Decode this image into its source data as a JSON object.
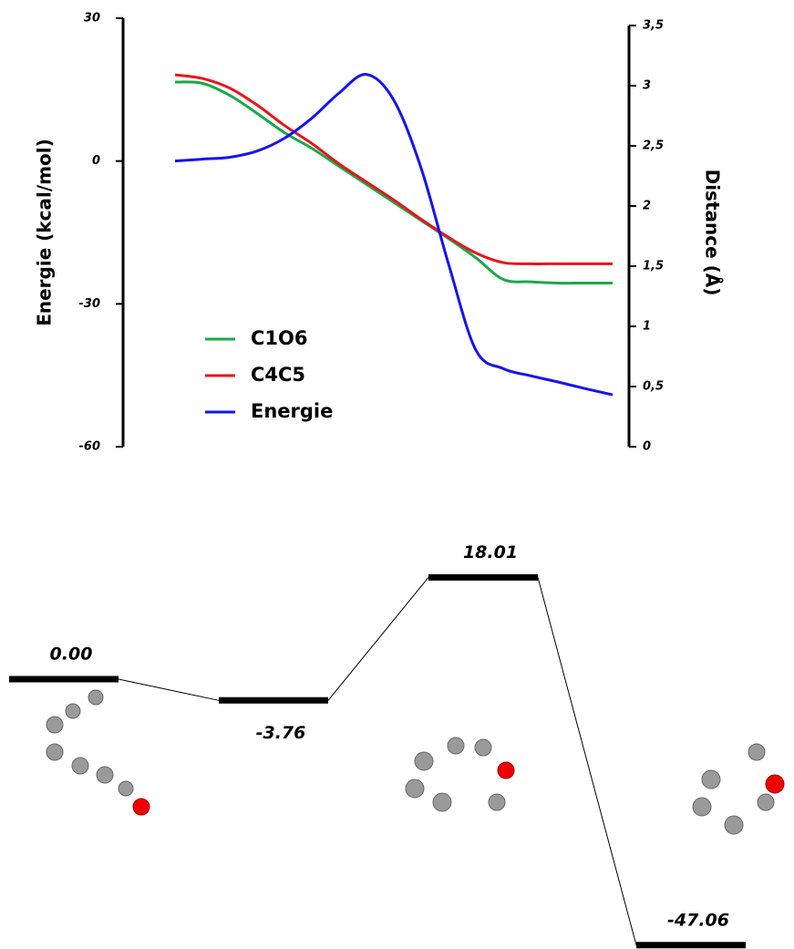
{
  "chart_data": [
    {
      "type": "line",
      "ylabel": "Energie (kcal/mol)",
      "y2label": "Distance (Å)",
      "ylim": [
        -60,
        30
      ],
      "yticks": [
        -60,
        -30,
        0,
        30
      ],
      "y2lim": [
        0,
        3.5
      ],
      "y2ticks": [
        0,
        {
          "value": 0.5,
          "label": "0,5"
        },
        1,
        {
          "value": 1.5,
          "label": "1,5"
        },
        2,
        {
          "value": 2.5,
          "label": "2,5"
        },
        3,
        {
          "value": 3.5,
          "label": "3,5"
        }
      ],
      "legend": "lower left",
      "series": [
        {
          "name": "C1O6",
          "color": "#1aa84a",
          "axis": "y2",
          "values": [
            3.03,
            3.02,
            2.92,
            2.77,
            2.61,
            2.48,
            2.33,
            2.18,
            2.03,
            1.88,
            1.73,
            1.57,
            1.39,
            1.37,
            1.36,
            1.36,
            1.36
          ]
        },
        {
          "name": "C4C5",
          "color": "#e8141e",
          "axis": "y2",
          "values": [
            3.09,
            3.06,
            2.98,
            2.84,
            2.67,
            2.52,
            2.35,
            2.2,
            2.05,
            1.89,
            1.74,
            1.61,
            1.53,
            1.52,
            1.52,
            1.52,
            1.52
          ]
        },
        {
          "name": "Energie",
          "color": "#1414f0",
          "values": [
            0,
            0.4,
            0.8,
            2.1,
            4.8,
            9,
            14.3,
            18.2,
            12.8,
            -1.5,
            -21.6,
            -39.7,
            -43.6,
            -45.1,
            -46.4,
            -47.8,
            -49.1
          ]
        }
      ]
    },
    {
      "type": "energy-diagram",
      "values": [
        0,
        -3.76,
        18.01,
        -47.06
      ],
      "value_labels": [
        "0.00",
        "-3.76",
        "18.01",
        "-47.06"
      ]
    }
  ]
}
